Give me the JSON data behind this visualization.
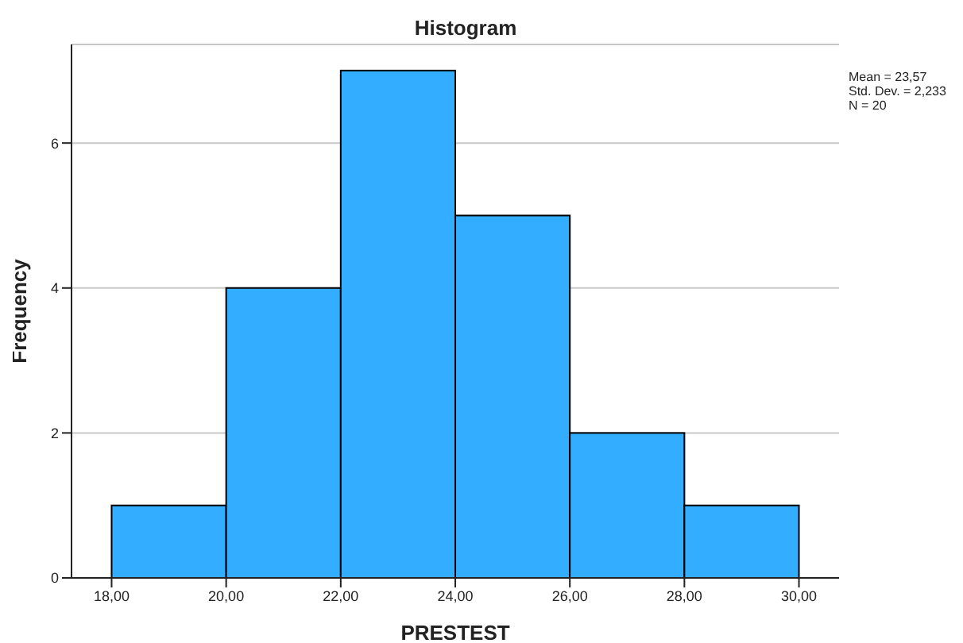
{
  "chart_data": {
    "type": "histogram",
    "title": "Histogram",
    "xlabel": "PRESTEST",
    "ylabel": "Frequency",
    "bins": [
      18,
      20,
      22,
      24,
      26,
      28,
      30
    ],
    "values": [
      1,
      4,
      7,
      5,
      2,
      1
    ],
    "color": "#33adff",
    "xlim": [
      17.3,
      30.7
    ],
    "ylim": [
      0,
      7.36
    ],
    "xticks": [
      {
        "value": 18,
        "label": "18,00"
      },
      {
        "value": 20,
        "label": "20,00"
      },
      {
        "value": 22,
        "label": "22,00"
      },
      {
        "value": 24,
        "label": "24,00"
      },
      {
        "value": 26,
        "label": "26,00"
      },
      {
        "value": 28,
        "label": "28,00"
      },
      {
        "value": 30,
        "label": "30,00"
      }
    ],
    "yticks": [
      0,
      2,
      4,
      6
    ],
    "grid": "y",
    "annotations": [
      "Mean = 23,57",
      "Std. Dev. = 2,233",
      "N = 20"
    ]
  }
}
